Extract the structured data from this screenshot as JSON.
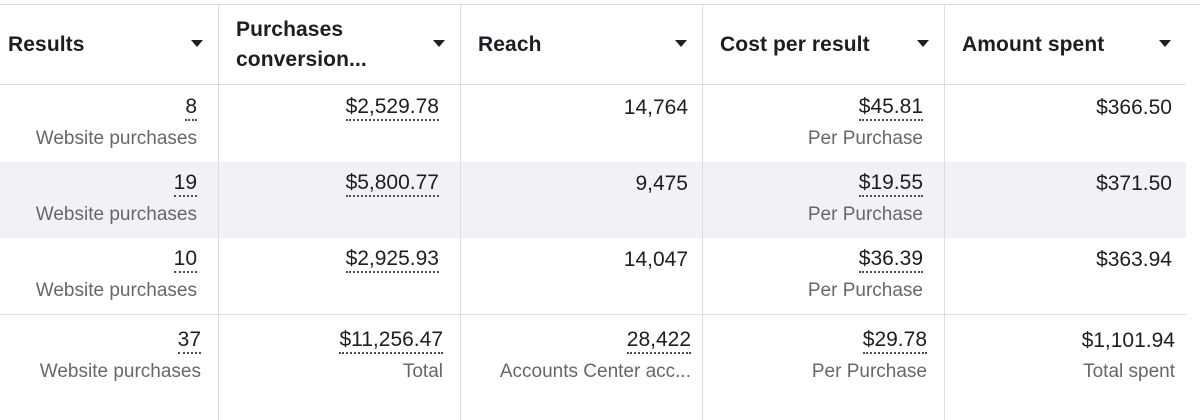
{
  "headers": {
    "results": "Results",
    "purchases_line1": "Purchases",
    "purchases_line2": "conversion...",
    "reach": "Reach",
    "cost": "Cost per result",
    "amount": "Amount spent"
  },
  "rows": [
    {
      "results": "8",
      "results_sub": "Website purchases",
      "purchases": "$2,529.78",
      "reach": "14,764",
      "cost": "$45.81",
      "cost_sub": "Per Purchase",
      "amount": "$366.50"
    },
    {
      "results": "19",
      "results_sub": "Website purchases",
      "purchases": "$5,800.77",
      "reach": "9,475",
      "cost": "$19.55",
      "cost_sub": "Per Purchase",
      "amount": "$371.50"
    },
    {
      "results": "10",
      "results_sub": "Website purchases",
      "purchases": "$2,925.93",
      "reach": "14,047",
      "cost": "$36.39",
      "cost_sub": "Per Purchase",
      "amount": "$363.94"
    }
  ],
  "total": {
    "results": "37",
    "results_sub": "Website purchases",
    "purchases": "$11,256.47",
    "purchases_sub": "Total",
    "reach": "28,422",
    "reach_sub": "Accounts Center acc...",
    "cost": "$29.78",
    "cost_sub": "Per Purchase",
    "amount": "$1,101.94",
    "amount_sub": "Total spent"
  },
  "colors": {
    "striped_row": "#f0f2f5",
    "grid": "#dadde1",
    "muted_text": "#65676b"
  },
  "icons": {
    "sort_caret": "caret-down-icon"
  }
}
